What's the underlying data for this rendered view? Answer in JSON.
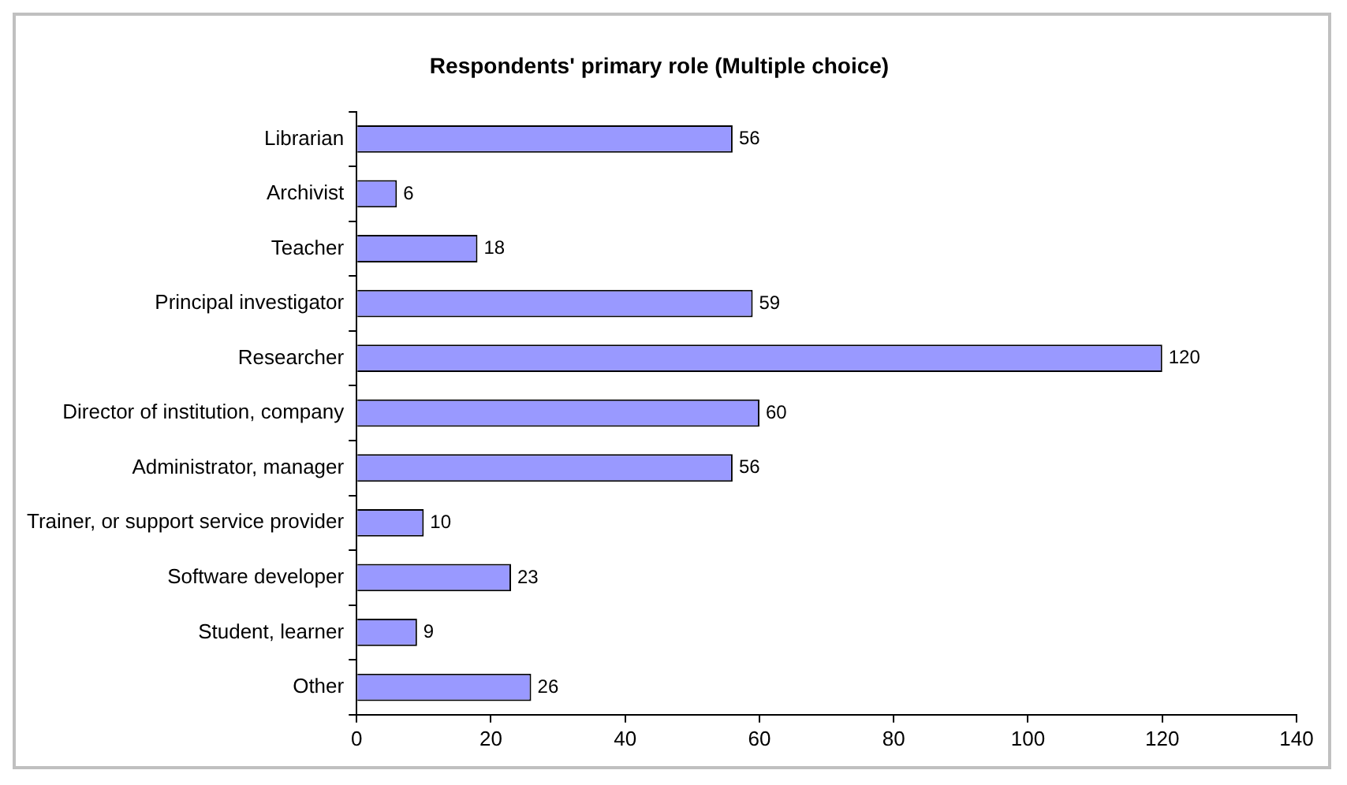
{
  "chart_data": {
    "type": "bar",
    "orientation": "horizontal",
    "title": "Respondents' primary role (Multiple choice)",
    "categories": [
      "Librarian",
      "Archivist",
      "Teacher",
      "Principal investigator",
      "Researcher",
      "Director of institution, company",
      "Administrator, manager",
      "Trainer, or support service provider",
      "Software developer",
      "Student, learner",
      "Other"
    ],
    "values": [
      56,
      6,
      18,
      59,
      120,
      60,
      56,
      10,
      23,
      9,
      26
    ],
    "color": "#9999ff",
    "xlim": [
      0,
      140
    ],
    "xticks": [
      0,
      20,
      40,
      60,
      80,
      100,
      120,
      140
    ],
    "grid": false,
    "legend": false,
    "data_labels": true
  }
}
